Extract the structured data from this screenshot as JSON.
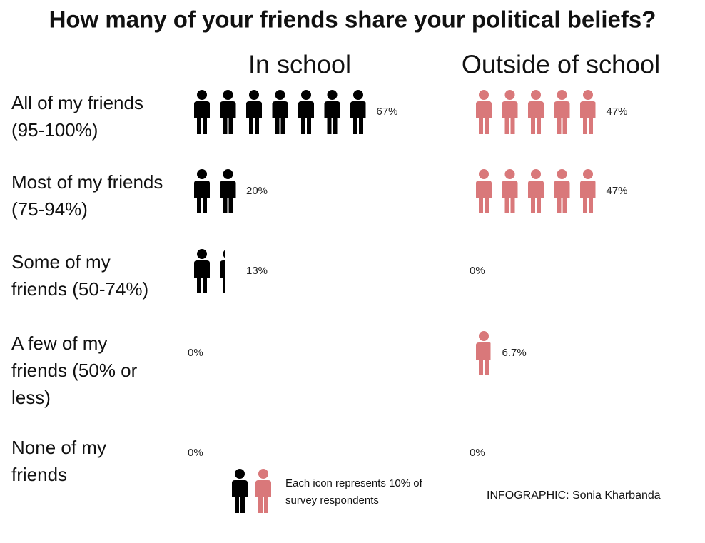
{
  "chart_data": {
    "type": "pictograph",
    "title": "How many of your friends share your political beliefs?",
    "categories": [
      "All of my friends (95-100%)",
      "Most of my friends (75-94%)",
      "Some of my friends (50-74%)",
      "A few of my friends (50% or less)",
      "None of my friends"
    ],
    "series": [
      {
        "name": "In school",
        "color": "#000000",
        "values": [
          67,
          20,
          13,
          0,
          0
        ],
        "value_labels": [
          "67%",
          "20%",
          "13%",
          "0%",
          "0%"
        ]
      },
      {
        "name": "Outside of school",
        "color": "#d9787a",
        "values": [
          47,
          47,
          0,
          6.7,
          0
        ],
        "value_labels": [
          "47%",
          "47%",
          "0%",
          "6.7%",
          "0%"
        ]
      }
    ],
    "note": "Each icon represents 10% of survey respondents",
    "credit": "INFOGRAPHIC: Sonia Kharbanda"
  }
}
